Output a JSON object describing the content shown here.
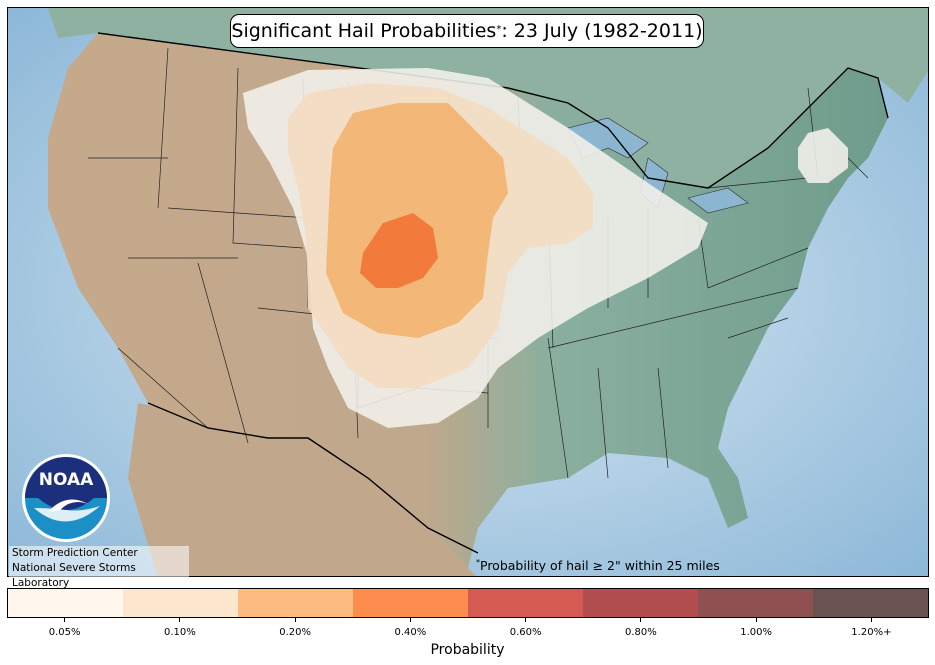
{
  "title": {
    "main": "Significant Hail Probabilities",
    "marker": "*",
    "date": ": 23 July (1982-2011)"
  },
  "credits": {
    "line1": "Storm Prediction Center",
    "line2": "National Severe Storms Laboratory"
  },
  "logo": {
    "text": "NOAA",
    "icon": "noaa-logo-icon"
  },
  "footnote": {
    "marker": "*",
    "text_before": "Probability of hail ",
    "symbol": "≥",
    "text_after": " 2\" within 25 miles"
  },
  "colorbar": {
    "axis_label": "Probability",
    "bins": [
      {
        "label": "0.05%",
        "color": "#fff7ed"
      },
      {
        "label": "0.10%",
        "color": "#fde6ce"
      },
      {
        "label": "0.20%",
        "color": "#fdbb7f"
      },
      {
        "label": "0.40%",
        "color": "#fc8b4e"
      },
      {
        "label": "0.60%",
        "color": "#d55a52"
      },
      {
        "label": "0.80%",
        "color": "#b24e50"
      },
      {
        "label": "1.00%",
        "color": "#8f5052"
      },
      {
        "label": "1.20%+",
        "color": "#6a5250"
      }
    ]
  },
  "map_colors": {
    "ocean": "#b7d3e9",
    "land_west": "#c6a98b",
    "land_east": "#7aa294",
    "canada": "#93b5a8",
    "contour_005": "#f4f1ec",
    "contour_010": "#f3dcc2",
    "contour_020": "#f2b473",
    "contour_040": "#f27a3a"
  }
}
